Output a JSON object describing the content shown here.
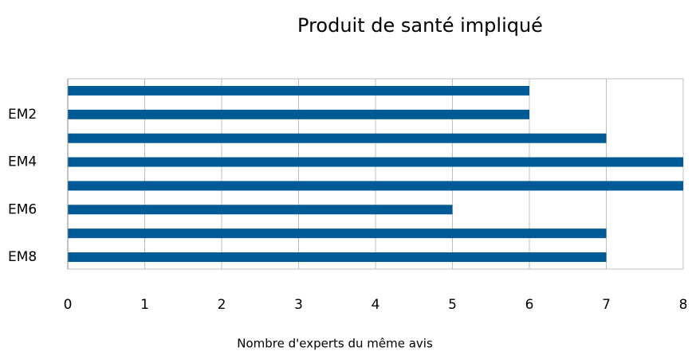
{
  "chart_data": {
    "type": "barh",
    "title": "Produit de santé impliqué",
    "xlabel": "Nombre d'experts du même avis",
    "categories": [
      null,
      "EM2",
      null,
      "EM4",
      null,
      "EM6",
      null,
      "EM8"
    ],
    "values": [
      6,
      6,
      7,
      8,
      8,
      5,
      7,
      7
    ],
    "color": "#005a96",
    "xlim": [
      0,
      8
    ],
    "xticks": [
      0,
      1,
      2,
      3,
      4,
      5,
      6,
      7,
      8
    ],
    "grid": true
  }
}
